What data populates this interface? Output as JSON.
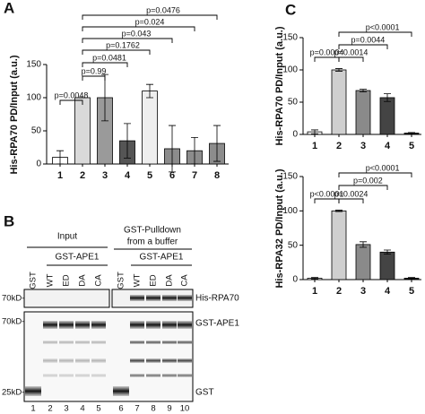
{
  "panel_labels": [
    "A",
    "B",
    "C"
  ],
  "chart_data": [
    {
      "type": "bar",
      "y_label": "His-RPA70 PD/Input (a.u.)",
      "categories": [
        "1",
        "2",
        "3",
        "4",
        "5",
        "6",
        "7",
        "8"
      ],
      "values": [
        10,
        100,
        100,
        35,
        110,
        23,
        20,
        31
      ],
      "errors": [
        10,
        0,
        35,
        26,
        10,
        35,
        20,
        27
      ],
      "colors": [
        "#ffffff",
        "#d9d9d9",
        "#9a9a9a",
        "#555555",
        "#eeeeee",
        "#8c8c8c",
        "#8c8c8c",
        "#8c8c8c"
      ],
      "ylim": [
        0,
        150
      ],
      "yticks": [
        0,
        50,
        100,
        150
      ],
      "comparisons": [
        {
          "between": [
            "1",
            "2"
          ],
          "label": "p=0.0048"
        },
        {
          "between": [
            "2",
            "3"
          ],
          "label": "p=0.99"
        },
        {
          "between": [
            "2",
            "4"
          ],
          "label": "p=0.0481"
        },
        {
          "between": [
            "2",
            "5"
          ],
          "label": "p=0.1762"
        },
        {
          "between": [
            "2",
            "6"
          ],
          "label": "p=0.043"
        },
        {
          "between": [
            "2",
            "7"
          ],
          "label": "p=0.024"
        },
        {
          "between": [
            "2",
            "8"
          ],
          "label": "p=0.0476"
        }
      ]
    },
    {
      "type": "bar",
      "y_label": "His-RPA70 PD/Input (a.u.)",
      "categories": [
        "1",
        "2",
        "3",
        "4",
        "5"
      ],
      "values": [
        4,
        100,
        68,
        57,
        2
      ],
      "errors": [
        3,
        2,
        2,
        6,
        1
      ],
      "colors": [
        "#ffffff",
        "#cfcfcf",
        "#8a8a8a",
        "#444444",
        "#111111"
      ],
      "ylim": [
        0,
        150
      ],
      "yticks": [
        0,
        50,
        100,
        150
      ],
      "comparisons": [
        {
          "between": [
            "1",
            "2"
          ],
          "label": "p=0.0004"
        },
        {
          "between": [
            "2",
            "3"
          ],
          "label": "p=0.0014"
        },
        {
          "between": [
            "2",
            "4"
          ],
          "label": "p=0.0044"
        },
        {
          "between": [
            "2",
            "5"
          ],
          "label": "p<0.0001"
        }
      ]
    },
    {
      "type": "bar",
      "y_label": "His-RPA32 PD/Input (a.u.)",
      "categories": [
        "1",
        "2",
        "3",
        "4",
        "5"
      ],
      "values": [
        2,
        100,
        51,
        40,
        2
      ],
      "errors": [
        1,
        1,
        4,
        3,
        1
      ],
      "colors": [
        "#ffffff",
        "#cfcfcf",
        "#8a8a8a",
        "#444444",
        "#111111"
      ],
      "ylim": [
        0,
        150
      ],
      "yticks": [
        0,
        50,
        100,
        150
      ],
      "comparisons": [
        {
          "between": [
            "1",
            "2"
          ],
          "label": "p<0.0001"
        },
        {
          "between": [
            "2",
            "3"
          ],
          "label": "p=0.0024"
        },
        {
          "between": [
            "2",
            "4"
          ],
          "label": "p=0.002"
        },
        {
          "between": [
            "2",
            "5"
          ],
          "label": "p<0.0001"
        }
      ]
    }
  ],
  "blot": {
    "input_label": "Input",
    "pulldown_label": [
      "GST-Pulldown",
      "from a buffer"
    ],
    "construct_labels": [
      "GST-APE1",
      "GST-APE1"
    ],
    "lanes": [
      "GST",
      "WT",
      "ED",
      "DA",
      "CA",
      "GST",
      "WT",
      "ED",
      "DA",
      "CA"
    ],
    "lane_numbers": [
      "1",
      "2",
      "3",
      "4",
      "5",
      "6",
      "7",
      "8",
      "9",
      "10"
    ],
    "markers": [
      "70kD-",
      "70kD-",
      "25kD-"
    ],
    "band_labels": [
      "His-RPA70",
      "GST-APE1",
      "GST"
    ]
  }
}
